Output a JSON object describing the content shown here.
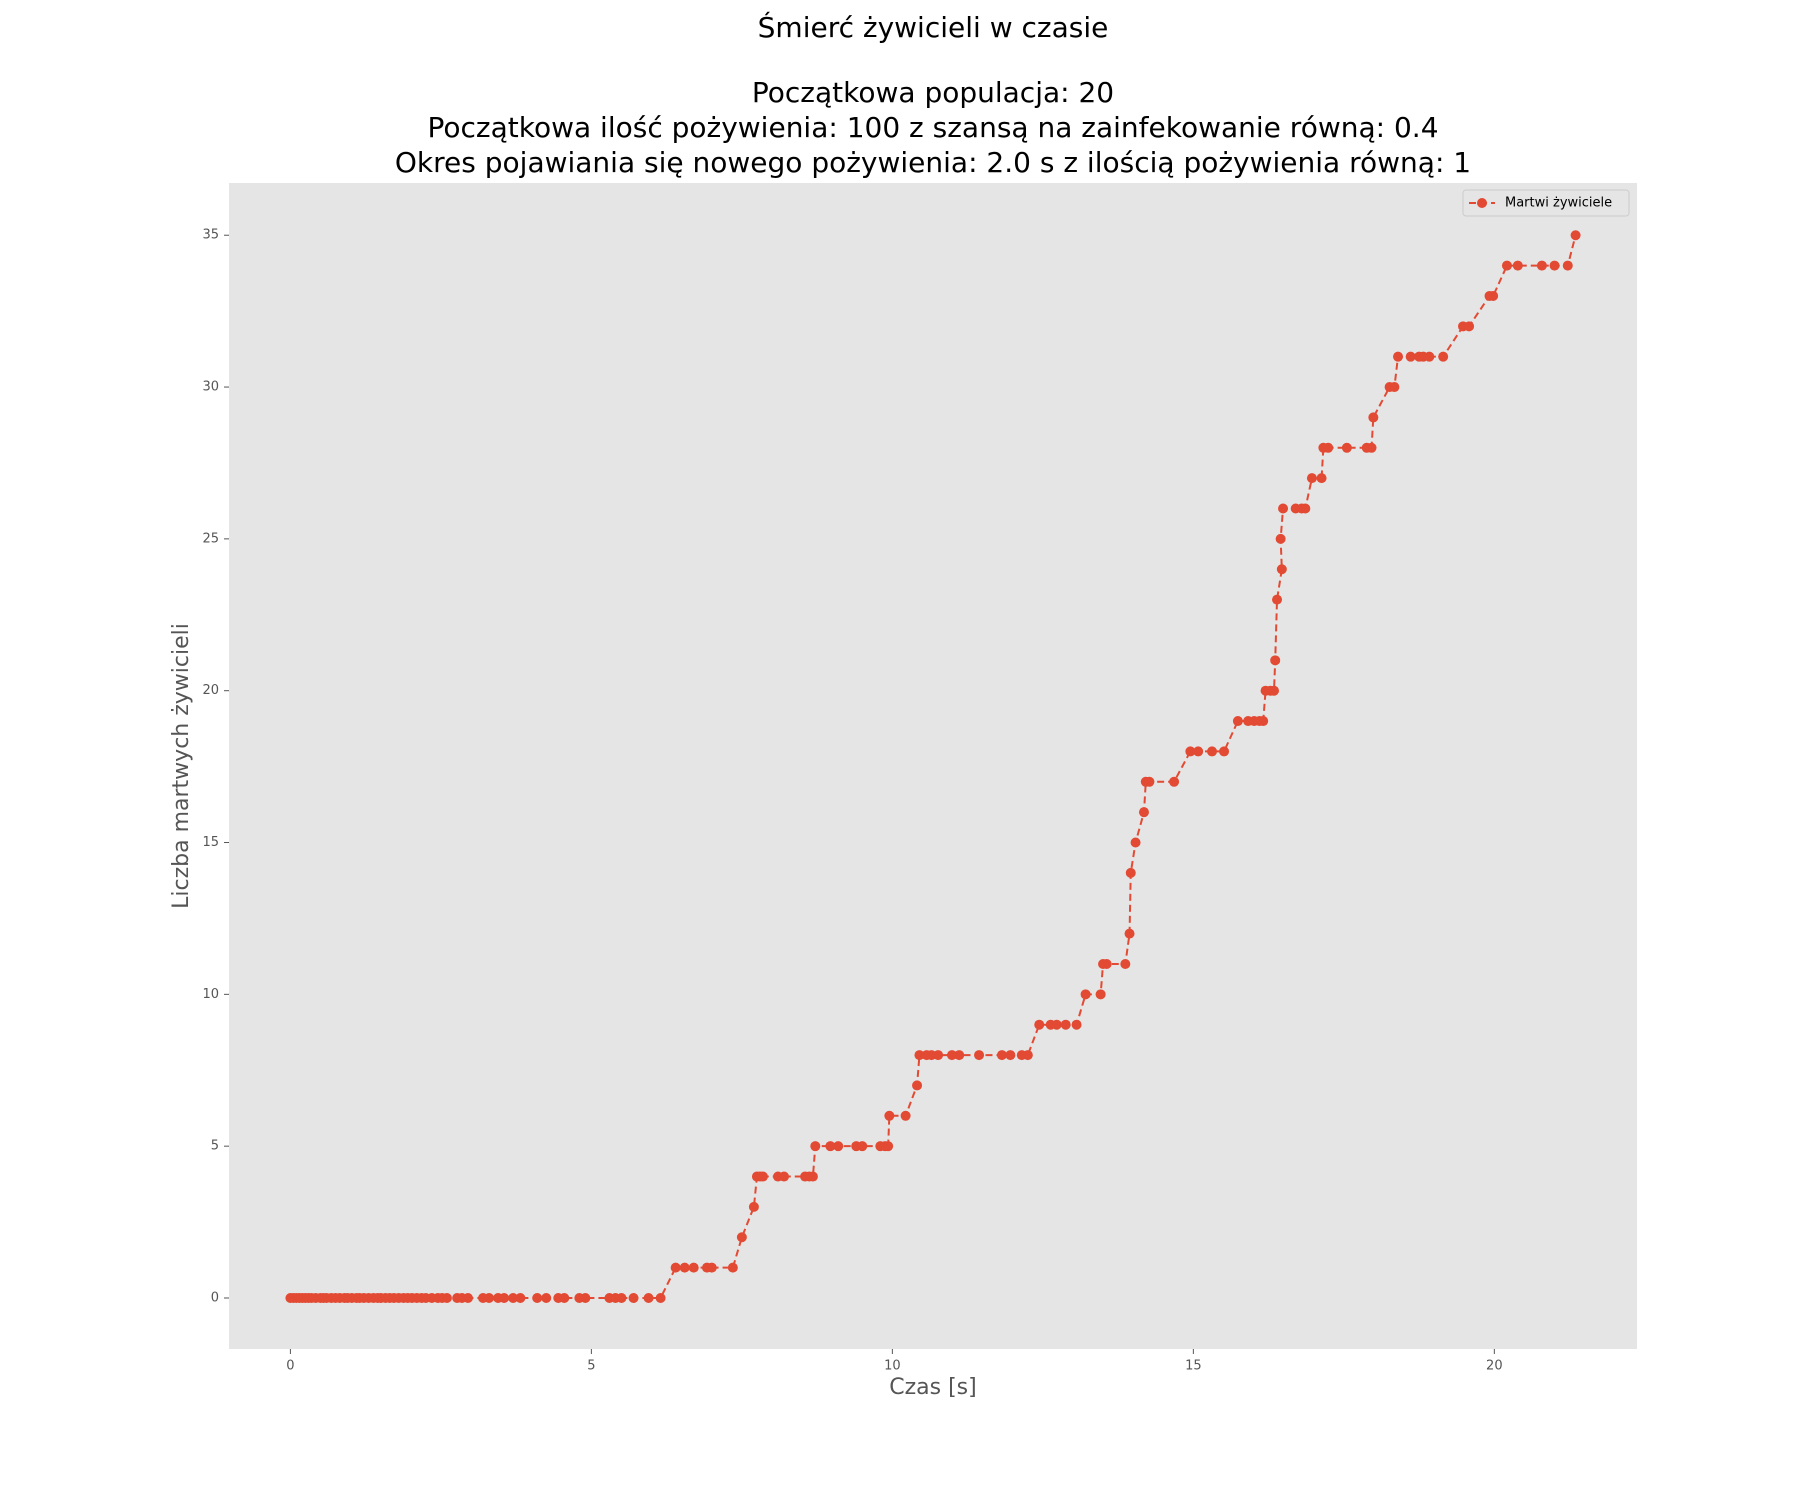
{
  "chart_data": {
    "type": "line",
    "title": "Śmierć żywicieli w czasie",
    "subtitle": [
      "Początkowa populacja: 20",
      "Początkowa ilość pożywienia: 100 z szansą na zainfekowanie równą: 0.4",
      "Okres pojawiania się nowego pożywienia: 2.0 s z ilością pożywienia równą: 1"
    ],
    "x_label": "Czas [s]",
    "y_label": "Liczba martwych żywicieli",
    "xlim": [
      -1.02,
      22.37
    ],
    "ylim": [
      -1.68,
      36.72
    ],
    "xticks": [
      0,
      5,
      10,
      15,
      20
    ],
    "yticks": [
      0,
      5,
      10,
      15,
      20,
      25,
      30,
      35
    ],
    "grid": false,
    "legend": "upper right",
    "series": [
      {
        "name": "Martwi żywiciele",
        "color": "#e24a33",
        "x": [
          0.0,
          0.05,
          0.1,
          0.15,
          0.2,
          0.25,
          0.3,
          0.35,
          0.42,
          0.5,
          0.55,
          0.6,
          0.68,
          0.75,
          0.82,
          0.9,
          0.95,
          1.02,
          1.1,
          1.15,
          1.22,
          1.3,
          1.38,
          1.45,
          1.5,
          1.58,
          1.65,
          1.72,
          1.8,
          1.88,
          1.95,
          2.02,
          2.1,
          2.18,
          2.25,
          2.35,
          2.45,
          2.52,
          2.6,
          2.77,
          2.85,
          2.95,
          3.2,
          3.3,
          3.45,
          3.55,
          3.7,
          3.82,
          4.1,
          4.25,
          4.45,
          4.55,
          4.8,
          4.9,
          5.3,
          5.4,
          5.5,
          5.7,
          5.95,
          6.15,
          6.4,
          6.55,
          6.7,
          6.92,
          7.0,
          7.35,
          7.5,
          7.7,
          7.75,
          7.8,
          7.85,
          8.1,
          8.2,
          8.55,
          8.62,
          8.68,
          8.72,
          8.97,
          9.1,
          9.4,
          9.5,
          9.8,
          9.88,
          9.93,
          9.95,
          10.22,
          10.41,
          10.45,
          10.57,
          10.65,
          10.76,
          10.99,
          11.11,
          11.44,
          11.82,
          11.96,
          12.15,
          12.25,
          12.44,
          12.63,
          12.73,
          12.88,
          13.06,
          13.21,
          13.46,
          13.5,
          13.56,
          13.87,
          13.94,
          13.96,
          14.04,
          14.18,
          14.21,
          14.27,
          14.68,
          14.95,
          15.08,
          15.31,
          15.51,
          15.74,
          15.91,
          16.01,
          16.1,
          16.16,
          16.2,
          16.28,
          16.34,
          16.36,
          16.39,
          16.47,
          16.45,
          16.49,
          16.7,
          16.8,
          16.86,
          16.97,
          17.13,
          17.16,
          17.24,
          17.55,
          17.88,
          17.96,
          17.99,
          18.26,
          18.34,
          18.4,
          18.61,
          18.75,
          18.82,
          18.92,
          19.15,
          19.48,
          19.58,
          19.92,
          19.98,
          20.21,
          20.39,
          20.79,
          21.0,
          21.22,
          21.35
        ],
        "values": [
          0,
          0,
          0,
          0,
          0,
          0,
          0,
          0,
          0,
          0,
          0,
          0,
          0,
          0,
          0,
          0,
          0,
          0,
          0,
          0,
          0,
          0,
          0,
          0,
          0,
          0,
          0,
          0,
          0,
          0,
          0,
          0,
          0,
          0,
          0,
          0,
          0,
          0,
          0,
          0,
          0,
          0,
          0,
          0,
          0,
          0,
          0,
          0,
          0,
          0,
          0,
          0,
          0,
          0,
          0,
          0,
          0,
          0,
          0,
          0,
          1,
          1,
          1,
          1,
          1,
          1,
          2,
          3,
          4,
          4,
          4,
          4,
          4,
          4,
          4,
          4,
          5,
          5,
          5,
          5,
          5,
          5,
          5,
          5,
          6,
          6,
          7,
          8,
          8,
          8,
          8,
          8,
          8,
          8,
          8,
          8,
          8,
          8,
          9,
          9,
          9,
          9,
          9,
          10,
          10,
          11,
          11,
          11,
          12,
          14,
          15,
          16,
          17,
          17,
          17,
          18,
          18,
          18,
          18,
          19,
          19,
          19,
          19,
          19,
          20,
          20,
          20,
          21,
          23,
          24,
          25,
          26,
          26,
          26,
          26,
          27,
          27,
          28,
          28,
          28,
          28,
          28,
          29,
          30,
          30,
          31,
          31,
          31,
          31,
          31,
          31,
          32,
          32,
          33,
          33,
          34,
          34,
          34,
          34,
          34,
          35
        ]
      }
    ]
  }
}
